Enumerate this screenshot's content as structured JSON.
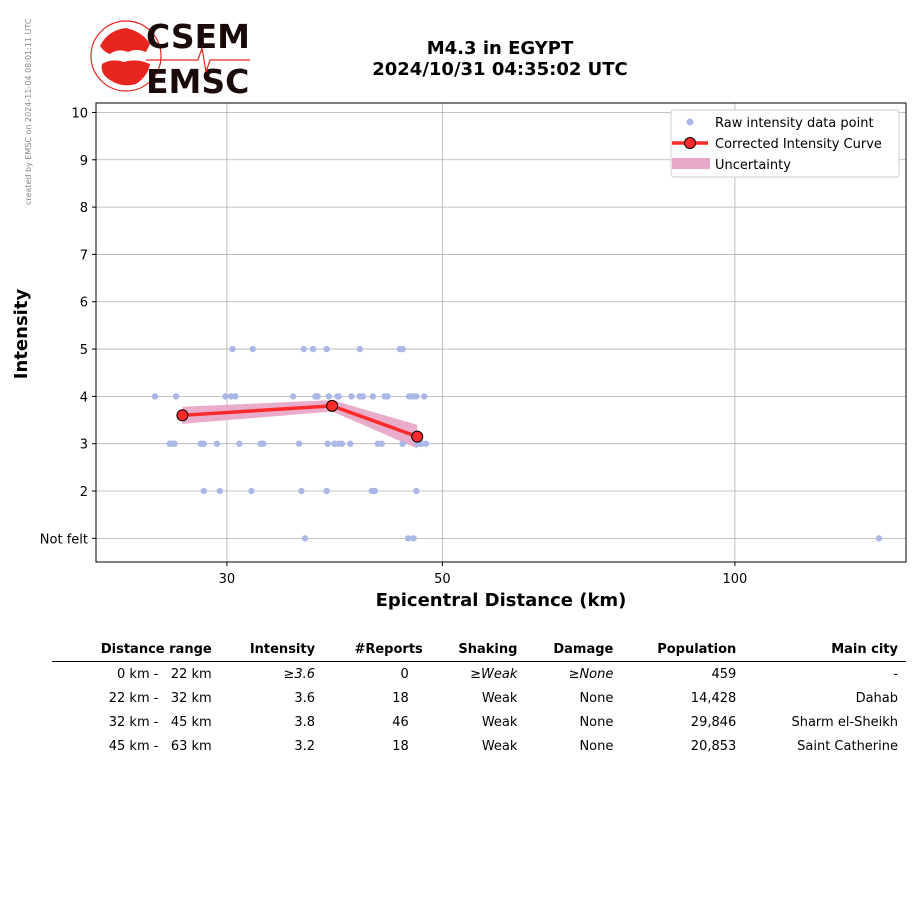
{
  "stamp": "created by EMSC on 2024-11-04 08:01:11 UTC",
  "logo": {
    "top": "CSEM",
    "bottom": "EMSC",
    "color": "#e8251f"
  },
  "header": {
    "line1": "M4.3 in EGYPT",
    "line2": "2024/10/31 04:35:02 UTC"
  },
  "chart_data": {
    "type": "scatter",
    "xlabel": "Epicentral Distance (km)",
    "ylabel": "Intensity",
    "x_scale": "log",
    "xlim": [
      22,
      150
    ],
    "ylim": [
      0.5,
      10.2
    ],
    "x_ticks": [
      30,
      50,
      100
    ],
    "y_ticks": [
      {
        "value": 1,
        "label": "Not felt"
      },
      {
        "value": 2,
        "label": "2"
      },
      {
        "value": 3,
        "label": "3"
      },
      {
        "value": 4,
        "label": "4"
      },
      {
        "value": 5,
        "label": "5"
      },
      {
        "value": 6,
        "label": "6"
      },
      {
        "value": 7,
        "label": "7"
      },
      {
        "value": 8,
        "label": "8"
      },
      {
        "value": 9,
        "label": "9"
      },
      {
        "value": 10,
        "label": "10"
      }
    ],
    "grid": true,
    "legend_position": "top-right",
    "series": [
      {
        "name": "Raw intensity data point",
        "color": "#aab8e8",
        "points": [
          [
            25.3,
            4
          ],
          [
            26.6,
            4
          ],
          [
            29.9,
            4
          ],
          [
            30.3,
            4
          ],
          [
            30.6,
            4
          ],
          [
            35.1,
            4
          ],
          [
            37.0,
            4
          ],
          [
            37.2,
            4
          ],
          [
            38.2,
            4
          ],
          [
            39.0,
            4
          ],
          [
            39.1,
            4
          ],
          [
            40.3,
            4
          ],
          [
            41.1,
            4
          ],
          [
            41.4,
            4
          ],
          [
            42.4,
            4
          ],
          [
            43.6,
            4
          ],
          [
            43.9,
            4
          ],
          [
            46.2,
            4
          ],
          [
            46.6,
            4
          ],
          [
            47.0,
            4
          ],
          [
            47.9,
            4
          ],
          [
            26.5,
            3
          ],
          [
            26.4,
            3
          ],
          [
            26.2,
            3
          ],
          [
            28.2,
            3
          ],
          [
            28.4,
            3
          ],
          [
            29.3,
            3
          ],
          [
            30.9,
            3
          ],
          [
            32.5,
            3
          ],
          [
            32.7,
            3
          ],
          [
            35.6,
            3
          ],
          [
            38.1,
            3
          ],
          [
            39.1,
            3
          ],
          [
            38.7,
            3
          ],
          [
            39.4,
            3
          ],
          [
            40.2,
            3
          ],
          [
            42.9,
            3
          ],
          [
            43.3,
            3
          ],
          [
            45.5,
            3
          ],
          [
            47.1,
            3
          ],
          [
            47.6,
            3
          ],
          [
            47.4,
            3
          ],
          [
            48.1,
            3
          ],
          [
            30.4,
            5
          ],
          [
            31.9,
            5
          ],
          [
            36.0,
            5
          ],
          [
            36.8,
            5
          ],
          [
            38.0,
            5
          ],
          [
            41.1,
            5
          ],
          [
            45.5,
            5
          ],
          [
            45.2,
            5
          ],
          [
            28.4,
            2
          ],
          [
            29.5,
            2
          ],
          [
            31.8,
            2
          ],
          [
            35.8,
            2
          ],
          [
            38.0,
            2
          ],
          [
            42.3,
            2
          ],
          [
            42.6,
            2
          ],
          [
            47.0,
            2
          ],
          [
            36.1,
            1
          ],
          [
            46.1,
            1
          ],
          [
            46.7,
            1
          ],
          [
            140.7,
            1
          ]
        ]
      },
      {
        "name": "Corrected Intensity Curve",
        "color": "#ff2a2a",
        "points": [
          [
            27.0,
            3.6
          ],
          [
            38.5,
            3.8
          ],
          [
            47.1,
            3.15
          ]
        ]
      },
      {
        "name": "Uncertainty",
        "color": "#e8a8c8",
        "upper": [
          [
            27.0,
            3.78
          ],
          [
            38.5,
            3.92
          ],
          [
            47.1,
            3.4
          ]
        ],
        "lower": [
          [
            27.0,
            3.42
          ],
          [
            38.5,
            3.68
          ],
          [
            47.1,
            2.9
          ]
        ]
      }
    ]
  },
  "table": {
    "headers": [
      "Distance range",
      "Intensity",
      "#Reports",
      "Shaking",
      "Damage",
      "Population",
      "Main city"
    ],
    "rows": [
      {
        "range": "0 km -   22 km",
        "intensity": "≥3.6",
        "reports": "0",
        "shaking": "≥Weak",
        "damage": "≥None",
        "population": "459",
        "city": "-"
      },
      {
        "range": "22 km -   32 km",
        "intensity": "3.6",
        "reports": "18",
        "shaking": "Weak",
        "damage": "None",
        "population": "14,428",
        "city": "Dahab"
      },
      {
        "range": "32 km -   45 km",
        "intensity": "3.8",
        "reports": "46",
        "shaking": "Weak",
        "damage": "None",
        "population": "29,846",
        "city": "Sharm el-Sheikh"
      },
      {
        "range": "45 km -   63 km",
        "intensity": "3.2",
        "reports": "18",
        "shaking": "Weak",
        "damage": "None",
        "population": "20,853",
        "city": "Saint Catherine"
      }
    ]
  }
}
